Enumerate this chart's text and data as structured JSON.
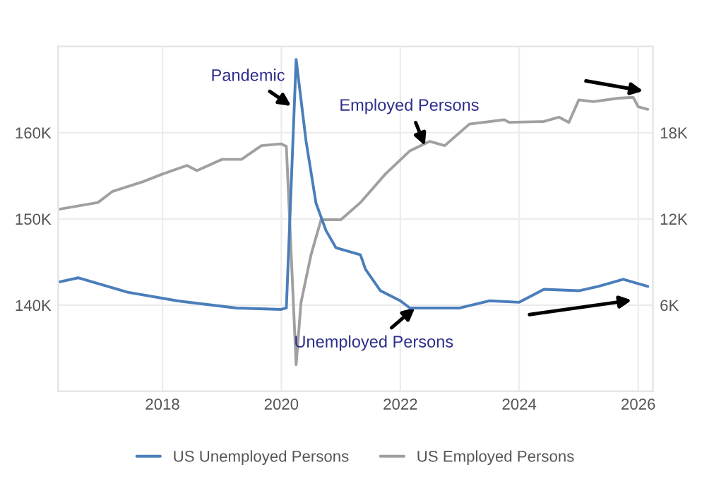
{
  "chart_data": {
    "type": "line",
    "xlim": [
      "2016-04",
      "2026-04"
    ],
    "xticks": [
      "2018",
      "2020",
      "2022",
      "2024",
      "2026"
    ],
    "ylim": [
      130000,
      170000
    ],
    "yticks": [
      {
        "value": 140000,
        "label": "140K"
      },
      {
        "value": 150000,
        "label": "150K"
      },
      {
        "value": 160000,
        "label": "160K"
      }
    ],
    "y2lim": [
      0,
      24000
    ],
    "y2ticks": [
      {
        "value": 6000,
        "label": "6K"
      },
      {
        "value": 12000,
        "label": "12K"
      },
      {
        "value": 18000,
        "label": "18K"
      }
    ],
    "grid": true,
    "legend": "bottom",
    "series": [
      {
        "name": "US Unemployed Persons",
        "color": "#4a7ebb",
        "axis": "y2",
        "x": [
          "2016-04",
          "2016-08",
          "2017-06",
          "2018-04",
          "2019-04",
          "2020-01",
          "2020-02",
          "2020-04",
          "2020-06",
          "2020-08",
          "2020-10",
          "2020-12",
          "2021-03",
          "2021-05",
          "2021-06",
          "2021-09",
          "2022-01",
          "2022-03",
          "2023-01",
          "2023-07",
          "2024-01",
          "2024-06",
          "2025-01",
          "2025-05",
          "2025-10",
          "2026-03"
        ],
        "values": [
          7600,
          7900,
          6900,
          6300,
          5800,
          5700,
          5800,
          23100,
          17400,
          13100,
          11200,
          10000,
          9700,
          9500,
          8500,
          7000,
          6300,
          5800,
          5800,
          6300,
          6200,
          7100,
          7000,
          7300,
          7800,
          7300
        ]
      },
      {
        "name": "US Employed Persons",
        "color": "#a0a0a0",
        "x": [
          "2016-04",
          "2016-12",
          "2017-03",
          "2017-09",
          "2018-01",
          "2018-06",
          "2018-08",
          "2019-01",
          "2019-05",
          "2019-09",
          "2020-01",
          "2020-02",
          "2020-04",
          "2020-05",
          "2020-07",
          "2020-09",
          "2021-01",
          "2021-05",
          "2021-10",
          "2022-03",
          "2022-07",
          "2022-10",
          "2023-03",
          "2023-10",
          "2023-11",
          "2024-06",
          "2024-09",
          "2024-11",
          "2025-01",
          "2025-04",
          "2025-09",
          "2025-12",
          "2026-01",
          "2026-03"
        ],
        "values": [
          151100,
          151900,
          153200,
          154300,
          155200,
          156200,
          155600,
          156900,
          156900,
          158500,
          158700,
          158400,
          133100,
          140300,
          145800,
          149900,
          149900,
          151900,
          155200,
          157900,
          159000,
          158500,
          161000,
          161500,
          161200,
          161300,
          161800,
          161200,
          163800,
          163600,
          164000,
          164100,
          163000,
          162700
        ]
      }
    ],
    "annotations": [
      {
        "text": "Pandemic",
        "x": "2020-03",
        "y": 163100
      },
      {
        "text": "Employed Persons",
        "x": "2022-06",
        "y": 158500
      },
      {
        "text": "Unemployed Persons",
        "x": "2022-04",
        "y": 139700
      }
    ]
  }
}
